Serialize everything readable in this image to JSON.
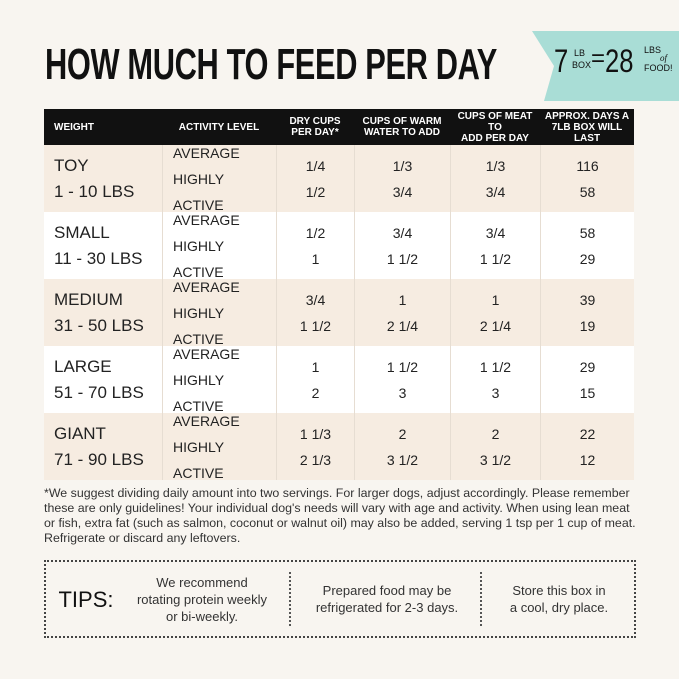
{
  "header": {
    "title": "HOW MUCH TO FEED PER DAY",
    "badge": {
      "left_number": "7",
      "left_unit_top": "LB",
      "left_unit_bottom": "BOX",
      "equals": "=",
      "right_number": "28",
      "right_unit_top": "LBS",
      "right_unit_mid": "of",
      "right_unit_bottom": "FOOD!"
    }
  },
  "table": {
    "columns": [
      [
        "WEIGHT"
      ],
      [
        "ACTIVITY LEVEL"
      ],
      [
        "DRY CUPS",
        "PER DAY*"
      ],
      [
        "CUPS OF WARM",
        "WATER TO ADD"
      ],
      [
        "CUPS OF MEAT TO",
        "ADD PER DAY"
      ],
      [
        "APPROX. DAYS A",
        "7LB BOX WILL LAST"
      ]
    ],
    "rows": [
      {
        "size": "TOY",
        "range": "1 - 10 LBS",
        "levels": [
          "AVERAGE",
          "HIGHLY ACTIVE"
        ],
        "dry": [
          "1/4",
          "1/2"
        ],
        "water": [
          "1/3",
          "3/4"
        ],
        "meat": [
          "1/3",
          "3/4"
        ],
        "days": [
          116,
          58
        ]
      },
      {
        "size": "SMALL",
        "range": "11 - 30 LBS",
        "levels": [
          "AVERAGE",
          "HIGHLY ACTIVE"
        ],
        "dry": [
          "1/2",
          "1"
        ],
        "water": [
          "3/4",
          "1 1/2"
        ],
        "meat": [
          "3/4",
          "1 1/2"
        ],
        "days": [
          58,
          29
        ]
      },
      {
        "size": "MEDIUM",
        "range": "31 - 50 LBS",
        "levels": [
          "AVERAGE",
          "HIGHLY ACTIVE"
        ],
        "dry": [
          "3/4",
          "1 1/2"
        ],
        "water": [
          "1",
          "2 1/4"
        ],
        "meat": [
          "1",
          "2 1/4"
        ],
        "days": [
          39,
          19
        ]
      },
      {
        "size": "LARGE",
        "range": "51 - 70 LBS",
        "levels": [
          "AVERAGE",
          "HIGHLY ACTIVE"
        ],
        "dry": [
          "1",
          "2"
        ],
        "water": [
          "1 1/2",
          "3"
        ],
        "meat": [
          "1 1/2",
          "3"
        ],
        "days": [
          29,
          15
        ]
      },
      {
        "size": "GIANT",
        "range": "71 - 90 LBS",
        "levels": [
          "AVERAGE",
          "HIGHLY ACTIVE"
        ],
        "dry": [
          "1 1/3",
          "2 1/3"
        ],
        "water": [
          "2",
          "3 1/2"
        ],
        "meat": [
          "2",
          "3 1/2"
        ],
        "days": [
          22,
          12
        ]
      }
    ]
  },
  "footnote": "*We suggest dividing daily amount into two servings. For larger dogs, adjust accordingly. Please remember these are only guidelines! Your individual dog's needs will vary with age and activity. When using lean meat or fish, extra fat (such as salmon, coconut or walnut oil) may also be added, serving 1 tsp per 1 cup of meat. Refrigerate or discard any leftovers.",
  "tips": {
    "label": "TIPS:",
    "items": [
      [
        "We recommend",
        "rotating protein weekly",
        "or bi-weekly."
      ],
      [
        "Prepared food may be",
        "refrigerated for 2-3 days."
      ],
      [
        "Store this box in",
        "a cool, dry place."
      ]
    ]
  }
}
